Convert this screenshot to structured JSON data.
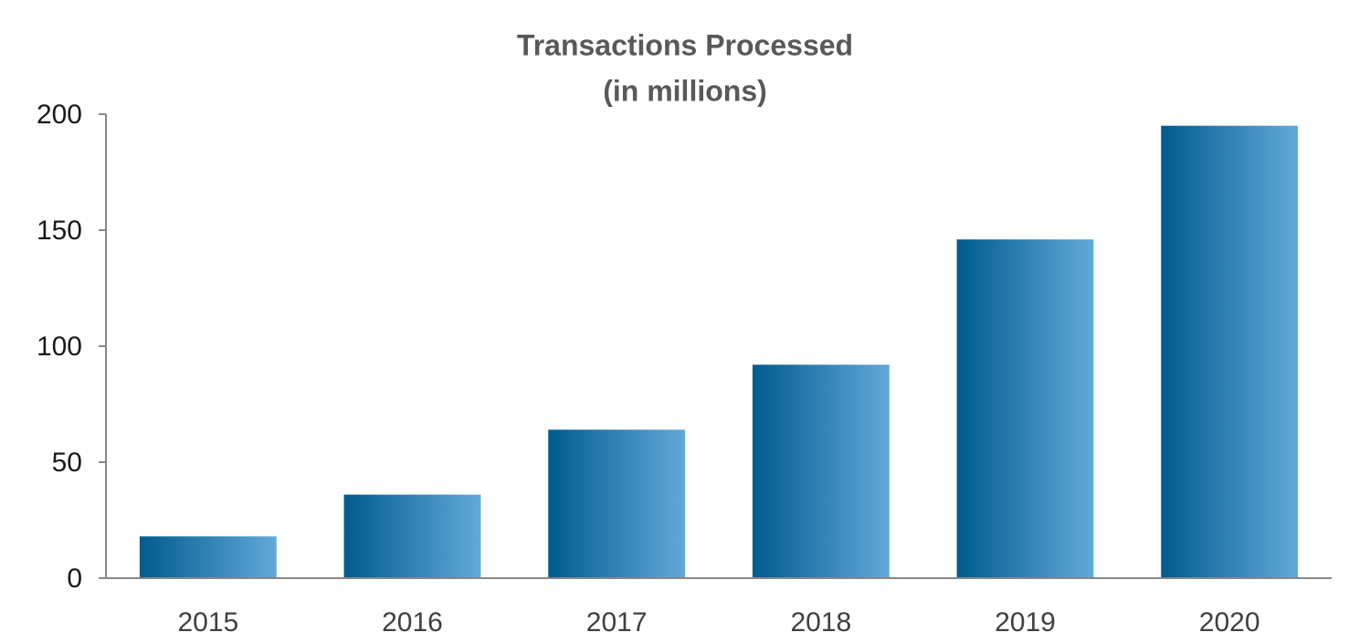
{
  "chart_data": {
    "type": "bar",
    "title": "Transactions Processed",
    "subtitle": "(in millions)",
    "categories": [
      "2015",
      "2016",
      "2017",
      "2018",
      "2019",
      "2020"
    ],
    "values": [
      18,
      36,
      64,
      92,
      146,
      195
    ],
    "color": [
      "#005b8e",
      "#62a9d9"
    ],
    "ylim": [
      0,
      200
    ],
    "yticks": [
      0,
      50,
      100,
      150,
      200
    ],
    "grid": false
  }
}
